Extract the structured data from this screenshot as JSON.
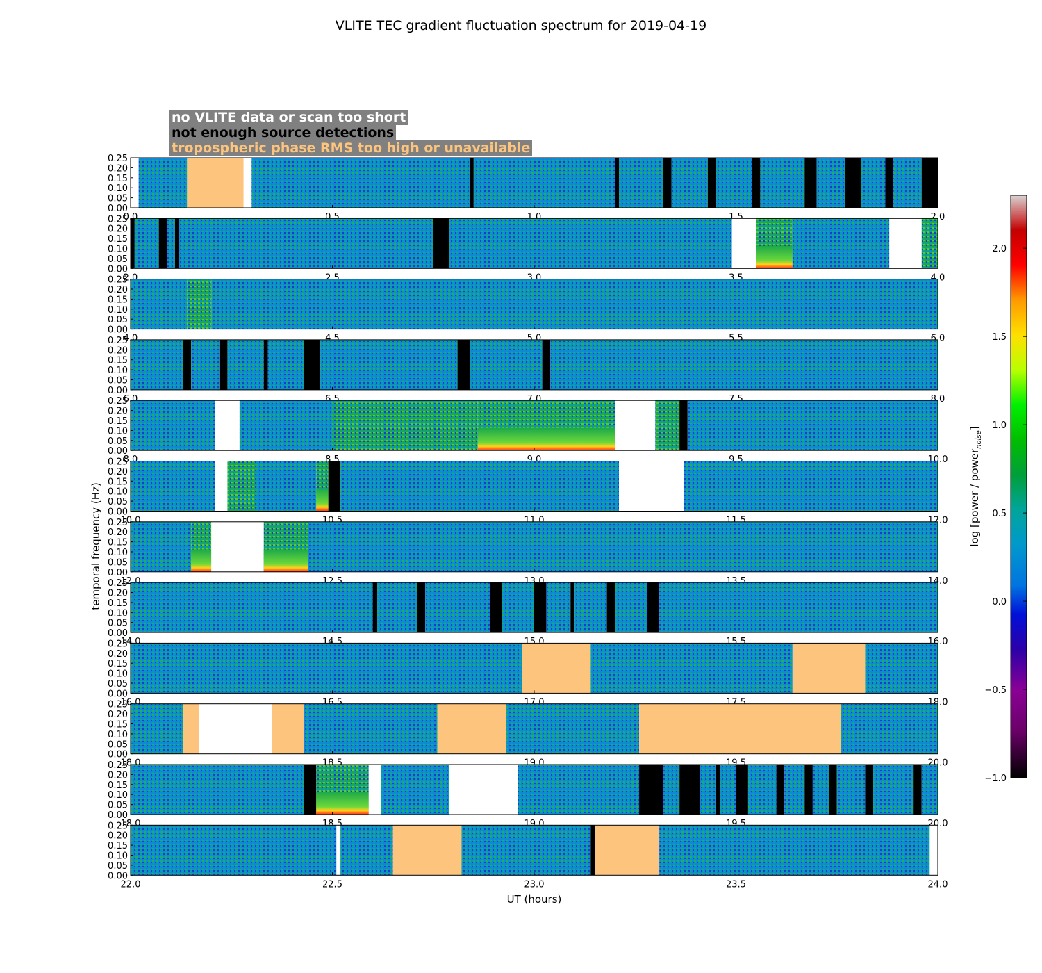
{
  "chart_data": {
    "type": "heatmap",
    "title": "VLITE TEC gradient fluctuation spectrum for 2019-04-19",
    "xlabel": "UT (hours)",
    "ylabel": "temporal frequency (Hz)",
    "ytick_labels": [
      "0.00",
      "0.05",
      "0.10",
      "0.15",
      "0.20",
      "0.25"
    ],
    "ylim": [
      0,
      0.25
    ],
    "colorbar": {
      "label": "log [power / power",
      "label_sub": "noise",
      "label_end": "]",
      "ticks": [
        "−1.0",
        "−0.5",
        "0.0",
        "0.5",
        "1.0",
        "1.5",
        "2.0"
      ],
      "tick_values": [
        -1.0,
        -0.5,
        0.0,
        0.5,
        1.0,
        1.5,
        2.0
      ],
      "range": [
        -1.0,
        2.3
      ]
    },
    "legend": [
      {
        "text": "no VLITE data or scan too short",
        "color": "#ffffff"
      },
      {
        "text": "not enough source detections",
        "color": "#000000"
      },
      {
        "text": "tropospheric phase RMS too high or unavailable",
        "color": "#fdc47d"
      }
    ],
    "category_colors": {
      "nodata": "#ffffff",
      "nodetect": "#000000",
      "tropo": "#fdc47d",
      "background": "#0093d6"
    },
    "panels": [
      {
        "x_ticks": [
          "0.0",
          "0.5",
          "1.0",
          "1.5",
          "2.0"
        ],
        "xlim": [
          0,
          2
        ],
        "segments": [
          [
            "w",
            0,
            0.02
          ],
          [
            "d",
            0.02,
            0.14
          ],
          [
            "t",
            0.14,
            0.28
          ],
          [
            "w",
            0.28,
            0.3
          ],
          [
            "d",
            0.3,
            0.84
          ],
          [
            "k",
            0.84,
            0.85
          ],
          [
            "d",
            0.85,
            1.2
          ],
          [
            "k",
            1.2,
            1.21
          ],
          [
            "d",
            1.21,
            1.32
          ],
          [
            "k",
            1.32,
            1.34
          ],
          [
            "d",
            1.34,
            1.43
          ],
          [
            "k",
            1.43,
            1.45
          ],
          [
            "d",
            1.45,
            1.54
          ],
          [
            "k",
            1.54,
            1.56
          ],
          [
            "d",
            1.56,
            1.67
          ],
          [
            "k",
            1.67,
            1.7
          ],
          [
            "d",
            1.7,
            1.77
          ],
          [
            "k",
            1.77,
            1.81
          ],
          [
            "d",
            1.81,
            1.87
          ],
          [
            "k",
            1.87,
            1.89
          ],
          [
            "d",
            1.89,
            1.96
          ],
          [
            "k",
            1.96,
            2.0
          ]
        ]
      },
      {
        "x_ticks": [
          "2.0",
          "2.5",
          "3.0",
          "3.5",
          "4.0"
        ],
        "xlim": [
          2,
          4
        ],
        "segments": [
          [
            "k",
            2.0,
            2.01
          ],
          [
            "d",
            2.01,
            2.07
          ],
          [
            "k",
            2.07,
            2.09
          ],
          [
            "d",
            2.09,
            2.11
          ],
          [
            "k",
            2.11,
            2.12
          ],
          [
            "d",
            2.12,
            2.75
          ],
          [
            "k",
            2.75,
            2.79
          ],
          [
            "d",
            2.79,
            3.49
          ],
          [
            "w",
            3.49,
            3.55
          ],
          [
            "h",
            3.55,
            3.64
          ],
          [
            "d",
            3.64,
            3.88
          ],
          [
            "w",
            3.88,
            3.96
          ],
          [
            "g",
            3.96,
            4.0
          ]
        ]
      },
      {
        "x_ticks": [
          "4.0",
          "4.5",
          "5.0",
          "5.5",
          "6.0"
        ],
        "xlim": [
          4,
          6
        ],
        "segments": [
          [
            "d",
            4.0,
            4.14
          ],
          [
            "g",
            4.14,
            4.2
          ],
          [
            "d",
            4.2,
            6.0
          ]
        ]
      },
      {
        "x_ticks": [
          "6.0",
          "6.5",
          "7.0",
          "7.5",
          "8.0"
        ],
        "xlim": [
          6,
          8
        ],
        "segments": [
          [
            "d",
            6.0,
            6.13
          ],
          [
            "k",
            6.13,
            6.15
          ],
          [
            "d",
            6.15,
            6.22
          ],
          [
            "k",
            6.22,
            6.24
          ],
          [
            "d",
            6.24,
            6.33
          ],
          [
            "k",
            6.33,
            6.34
          ],
          [
            "d",
            6.34,
            6.43
          ],
          [
            "k",
            6.43,
            6.47
          ],
          [
            "d",
            6.47,
            6.81
          ],
          [
            "k",
            6.81,
            6.84
          ],
          [
            "d",
            6.84,
            7.02
          ],
          [
            "k",
            7.02,
            7.04
          ],
          [
            "d",
            7.04,
            8.0
          ]
        ]
      },
      {
        "x_ticks": [
          "8.0",
          "8.5",
          "9.0",
          "9.5",
          "10.0"
        ],
        "xlim": [
          8,
          10
        ],
        "segments": [
          [
            "d",
            8.0,
            8.21
          ],
          [
            "w",
            8.21,
            8.27
          ],
          [
            "d",
            8.27,
            8.5
          ],
          [
            "g",
            8.5,
            8.86
          ],
          [
            "h",
            8.86,
            9.2
          ],
          [
            "w",
            9.2,
            9.3
          ],
          [
            "g",
            9.3,
            9.36
          ],
          [
            "k",
            9.36,
            9.38
          ],
          [
            "d",
            9.38,
            10.0
          ]
        ]
      },
      {
        "x_ticks": [
          "10.0",
          "10.5",
          "11.0",
          "11.5",
          "12.0"
        ],
        "xlim": [
          10,
          12
        ],
        "segments": [
          [
            "d",
            10.0,
            10.21
          ],
          [
            "w",
            10.21,
            10.24
          ],
          [
            "g",
            10.24,
            10.31
          ],
          [
            "d",
            10.31,
            10.46
          ],
          [
            "h",
            10.46,
            10.49
          ],
          [
            "k",
            10.49,
            10.52
          ],
          [
            "d",
            10.52,
            11.21
          ],
          [
            "w",
            11.21,
            11.37
          ],
          [
            "d",
            11.37,
            12.0
          ]
        ]
      },
      {
        "x_ticks": [
          "12.0",
          "12.5",
          "13.0",
          "13.5",
          "14.0"
        ],
        "xlim": [
          12,
          14
        ],
        "segments": [
          [
            "d",
            12.0,
            12.15
          ],
          [
            "h",
            12.15,
            12.2
          ],
          [
            "w",
            12.2,
            12.33
          ],
          [
            "h",
            12.33,
            12.44
          ],
          [
            "d",
            12.44,
            14.0
          ]
        ]
      },
      {
        "x_ticks": [
          "14.0",
          "14.5",
          "15.0",
          "15.5",
          "16.0"
        ],
        "xlim": [
          14,
          16
        ],
        "segments": [
          [
            "d",
            14.0,
            14.6
          ],
          [
            "k",
            14.6,
            14.61
          ],
          [
            "d",
            14.61,
            14.71
          ],
          [
            "k",
            14.71,
            14.73
          ],
          [
            "d",
            14.73,
            14.89
          ],
          [
            "k",
            14.89,
            14.92
          ],
          [
            "d",
            14.92,
            15.0
          ],
          [
            "k",
            15.0,
            15.03
          ],
          [
            "d",
            15.03,
            15.09
          ],
          [
            "k",
            15.09,
            15.1
          ],
          [
            "d",
            15.1,
            15.18
          ],
          [
            "k",
            15.18,
            15.2
          ],
          [
            "d",
            15.2,
            15.28
          ],
          [
            "k",
            15.28,
            15.31
          ],
          [
            "d",
            15.31,
            16.0
          ]
        ]
      },
      {
        "x_ticks": [
          "16.0",
          "16.5",
          "17.0",
          "17.5",
          "18.0"
        ],
        "xlim": [
          16,
          18
        ],
        "segments": [
          [
            "d",
            16.0,
            16.97
          ],
          [
            "t",
            16.97,
            17.14
          ],
          [
            "d",
            17.14,
            17.64
          ],
          [
            "t",
            17.64,
            17.82
          ],
          [
            "d",
            17.82,
            18.0
          ]
        ]
      },
      {
        "x_ticks": [
          "18.0",
          "18.5",
          "19.0",
          "19.5",
          "20.0"
        ],
        "xlim": [
          18,
          20
        ],
        "segments": [
          [
            "d",
            18.0,
            18.13
          ],
          [
            "t",
            18.13,
            18.17
          ],
          [
            "w",
            18.17,
            18.35
          ],
          [
            "t",
            18.35,
            18.43
          ],
          [
            "d",
            18.43,
            18.76
          ],
          [
            "t",
            18.76,
            18.93
          ],
          [
            "d",
            18.93,
            19.26
          ],
          [
            "t",
            19.26,
            19.76
          ],
          [
            "d",
            19.76,
            20.0
          ]
        ]
      },
      {
        "x_ticks": [
          "18.0",
          "18.5",
          "19.0",
          "19.5",
          "20.0"
        ],
        "xlim": [
          18,
          20
        ],
        "segments": [
          [
            "d",
            18.0,
            18.43
          ],
          [
            "k",
            18.43,
            18.46
          ],
          [
            "h",
            18.46,
            18.59
          ],
          [
            "w",
            18.59,
            18.62
          ],
          [
            "d",
            18.62,
            18.79
          ],
          [
            "w",
            18.79,
            18.96
          ],
          [
            "d",
            18.96,
            19.26
          ],
          [
            "k",
            19.26,
            19.32
          ],
          [
            "d",
            19.32,
            19.36
          ],
          [
            "k",
            19.36,
            19.41
          ],
          [
            "d",
            19.41,
            19.45
          ],
          [
            "k",
            19.45,
            19.46
          ],
          [
            "d",
            19.46,
            19.5
          ],
          [
            "k",
            19.5,
            19.53
          ],
          [
            "d",
            19.53,
            19.6
          ],
          [
            "k",
            19.6,
            19.62
          ],
          [
            "d",
            19.62,
            19.67
          ],
          [
            "k",
            19.67,
            19.69
          ],
          [
            "d",
            19.69,
            19.73
          ],
          [
            "k",
            19.73,
            19.75
          ],
          [
            "d",
            19.75,
            19.82
          ],
          [
            "k",
            19.82,
            19.84
          ],
          [
            "d",
            19.84,
            19.94
          ],
          [
            "k",
            19.94,
            19.96
          ],
          [
            "d",
            19.96,
            20.0
          ]
        ]
      },
      {
        "x_ticks": [
          "22.0",
          "22.5",
          "23.0",
          "23.5",
          "24.0"
        ],
        "xlim": [
          22,
          24
        ],
        "segments": [
          [
            "d",
            22.0,
            22.51
          ],
          [
            "w",
            22.51,
            22.52
          ],
          [
            "d",
            22.52,
            22.65
          ],
          [
            "t",
            22.65,
            22.82
          ],
          [
            "d",
            22.82,
            23.14
          ],
          [
            "k",
            23.14,
            23.15
          ],
          [
            "t",
            23.15,
            23.31
          ],
          [
            "d",
            23.31,
            23.98
          ],
          [
            "w",
            23.98,
            24.0
          ]
        ]
      }
    ],
    "partial_tick_labels": [
      [
        "2.0",
        "0.0"
      ],
      [
        "2.0",
        "2.0"
      ],
      [
        "4.0",
        "4.0"
      ],
      [
        "6.0",
        "6.0"
      ],
      [
        "8.0",
        "8.0"
      ],
      [
        "10.0",
        "10.0"
      ],
      [
        "12.0",
        "12.0"
      ],
      [
        "14.0",
        "14.0"
      ],
      [
        "16.0",
        "16.0"
      ],
      [
        "18.0",
        "18.0"
      ],
      [
        "20.0",
        "20.0"
      ]
    ]
  }
}
